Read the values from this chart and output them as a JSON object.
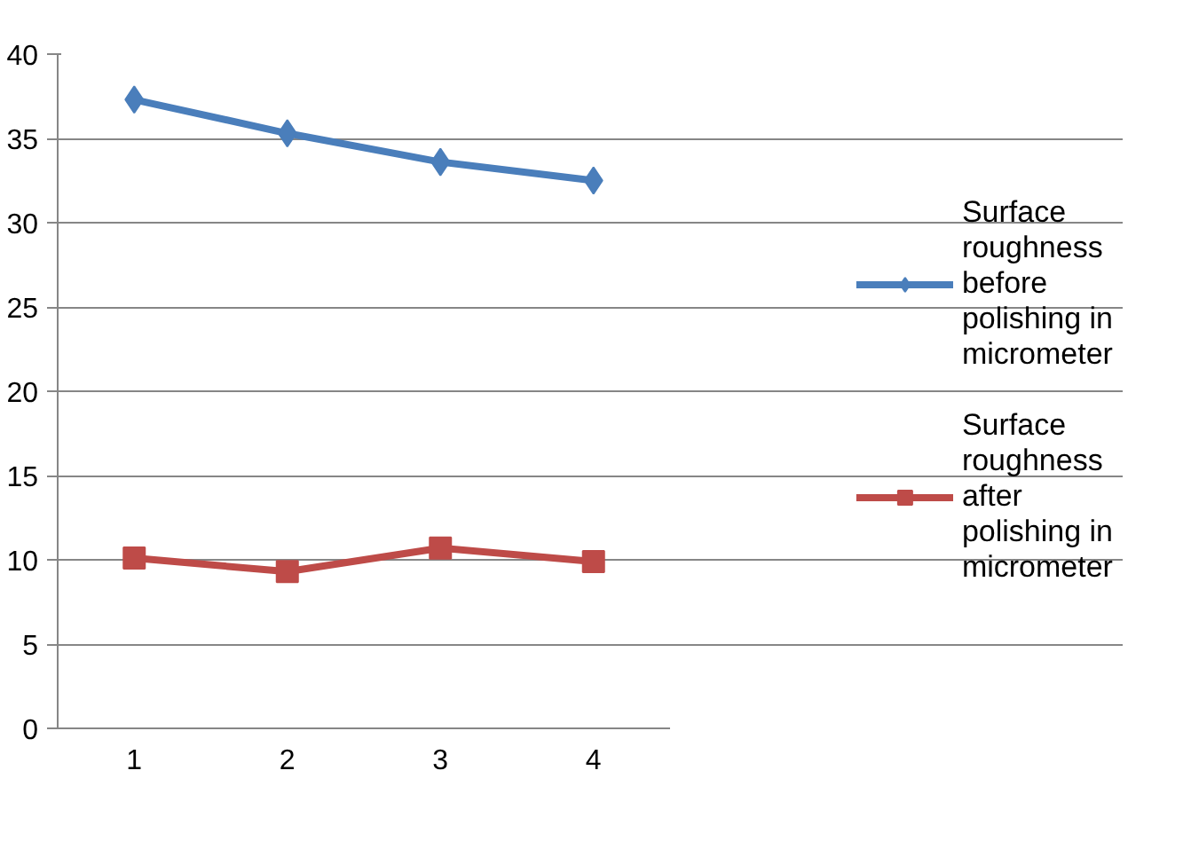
{
  "chart_data": {
    "type": "line",
    "categories": [
      "1",
      "2",
      "3",
      "4"
    ],
    "series": [
      {
        "name": "Surface roughness before polishing in micrometer",
        "color": "#4a7ebb",
        "marker": "diamond",
        "values": [
          37.3,
          35.3,
          33.6,
          32.5
        ]
      },
      {
        "name": "Surface roughness after polishing in micrometer",
        "color": "#be4b48",
        "marker": "square",
        "values": [
          10.1,
          9.3,
          10.7,
          9.9
        ]
      }
    ],
    "ylim": [
      0,
      40
    ],
    "yticks": [
      0,
      5,
      10,
      15,
      20,
      25,
      30,
      35,
      40
    ],
    "grid": "y",
    "legend": "right",
    "line_style": "solid"
  }
}
